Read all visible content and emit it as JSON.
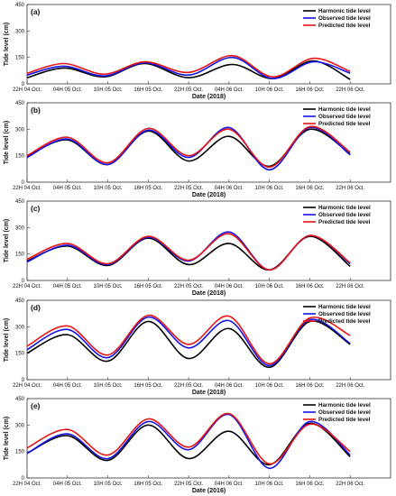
{
  "colors": {
    "harmonic": "#000000",
    "observed": "#1414e6",
    "predicted": "#e61414",
    "frame": "#333333"
  },
  "chart_data": [
    {
      "type": "line",
      "panel_label": "(a)",
      "xlabel": "Date (2018)",
      "ylabel": "Tide level (cm)",
      "ylim": [
        0,
        450
      ],
      "yticks": [
        0,
        150,
        300,
        450
      ],
      "xlim": [
        0,
        54
      ],
      "xticks": [
        0,
        6,
        12,
        18,
        24,
        30,
        36,
        42,
        48
      ],
      "xticklabels": [
        "22H 04 Oct.",
        "04H 05 Oct.",
        "10H 05 Oct.",
        "16H 05 Oct.",
        "22H 05 Oct.",
        "04H 06 Oct.",
        "10H 06 Oct.",
        "16H 06 Oct.",
        "22H 06 Oct."
      ],
      "legend": {
        "position": "top-right"
      },
      "x": [
        0,
        5.5,
        11.5,
        17.5,
        24,
        30.5,
        36.5,
        42.5,
        48
      ],
      "series": [
        {
          "name": "Harmonic tide level",
          "key": "harmonic",
          "values": [
            35,
            90,
            40,
            115,
            35,
            110,
            30,
            130,
            25
          ]
        },
        {
          "name": "Observed tide level",
          "key": "observed",
          "values": [
            50,
            100,
            45,
            120,
            50,
            150,
            30,
            125,
            60
          ]
        },
        {
          "name": "Predicted tide level",
          "key": "predicted",
          "values": [
            60,
            115,
            55,
            125,
            65,
            160,
            40,
            145,
            70
          ]
        }
      ]
    },
    {
      "type": "line",
      "panel_label": "(b)",
      "xlabel": "Date (2018)",
      "ylabel": "Tide level (cm)",
      "ylim": [
        0,
        450
      ],
      "yticks": [
        0,
        150,
        300,
        450
      ],
      "xlim": [
        0,
        54
      ],
      "xticks": [
        0,
        6,
        12,
        18,
        24,
        30,
        36,
        42,
        48
      ],
      "xticklabels": [
        "22H 04 Oct.",
        "04H 05 Oct.",
        "10H 05 Oct.",
        "16H 05 Oct.",
        "22H 05 Oct.",
        "04H 06 Oct.",
        "10H 06 Oct.",
        "16H 06 Oct.",
        "22H 06 Oct."
      ],
      "legend": {
        "position": "top-right"
      },
      "x": [
        0,
        6,
        12,
        18,
        24,
        30,
        36,
        42,
        48
      ],
      "series": [
        {
          "name": "Harmonic tide level",
          "key": "harmonic",
          "values": [
            145,
            240,
            100,
            290,
            120,
            260,
            90,
            300,
            160
          ]
        },
        {
          "name": "Observed tide level",
          "key": "observed",
          "values": [
            140,
            245,
            100,
            295,
            140,
            310,
            70,
            310,
            155
          ]
        },
        {
          "name": "Predicted tide level",
          "key": "predicted",
          "values": [
            150,
            255,
            110,
            305,
            150,
            300,
            85,
            315,
            170
          ]
        }
      ]
    },
    {
      "type": "line",
      "panel_label": "(c)",
      "xlabel": "Date (2018)",
      "ylabel": "Tide level (cm)",
      "ylim": [
        0,
        450
      ],
      "yticks": [
        0,
        150,
        300,
        450
      ],
      "xlim": [
        0,
        54
      ],
      "xticks": [
        0,
        6,
        12,
        18,
        24,
        30,
        36,
        42,
        48
      ],
      "xticklabels": [
        "22H 04 Oct.",
        "04H 05 Oct.",
        "10H 05 Oct.",
        "16H 05 Oct.",
        "22H 05 Oct.",
        "04H 06 Oct.",
        "10H 06 Oct.",
        "16H 06 Oct.",
        "22H 06 Oct."
      ],
      "legend": {
        "position": "top-right"
      },
      "x": [
        0,
        6,
        12,
        18,
        24,
        30,
        36,
        42,
        48
      ],
      "series": [
        {
          "name": "Harmonic tide level",
          "key": "harmonic",
          "values": [
            110,
            195,
            85,
            240,
            90,
            210,
            60,
            250,
            80
          ]
        },
        {
          "name": "Observed tide level",
          "key": "observed",
          "values": [
            105,
            200,
            90,
            245,
            110,
            275,
            60,
            255,
            95
          ]
        },
        {
          "name": "Predicted tide level",
          "key": "predicted",
          "values": [
            120,
            210,
            95,
            250,
            115,
            265,
            60,
            255,
            100
          ]
        }
      ]
    },
    {
      "type": "line",
      "panel_label": "(d)",
      "xlabel": "Date (2018)",
      "ylabel": "Tide level (cm)",
      "ylim": [
        0,
        450
      ],
      "yticks": [
        0,
        150,
        300,
        450
      ],
      "xlim": [
        0,
        54
      ],
      "xticks": [
        0,
        6,
        12,
        18,
        24,
        30,
        36,
        42,
        48
      ],
      "xticklabels": [
        "22H 04 Oct.",
        "04H 05 Oct.",
        "10H 05 Oct.",
        "16H 05 Oct.",
        "22H 05 Oct.",
        "04H 06 Oct.",
        "10H 06 Oct.",
        "16H 06 Oct.",
        "22H 06 Oct."
      ],
      "legend": {
        "position": "top-right"
      },
      "x": [
        0,
        6,
        12,
        18,
        24,
        30,
        36,
        42,
        48
      ],
      "series": [
        {
          "name": "Harmonic tide level",
          "key": "harmonic",
          "values": [
            150,
            255,
            105,
            330,
            120,
            290,
            70,
            330,
            200
          ]
        },
        {
          "name": "Observed tide level",
          "key": "observed",
          "values": [
            170,
            285,
            125,
            355,
            180,
            335,
            80,
            340,
            205
          ]
        },
        {
          "name": "Predicted tide level",
          "key": "predicted",
          "values": [
            190,
            305,
            140,
            365,
            200,
            360,
            90,
            350,
            250
          ]
        }
      ]
    },
    {
      "type": "line",
      "panel_label": "(e)",
      "xlabel": "Date (2016)",
      "ylabel": "Tide level (cm)",
      "ylim": [
        0,
        450
      ],
      "yticks": [
        0,
        150,
        300,
        450
      ],
      "xlim": [
        0,
        54
      ],
      "xticks": [
        0,
        6,
        12,
        18,
        24,
        30,
        36,
        42,
        48
      ],
      "xticklabels": [
        "22H 04 Oct.",
        "04H 05 Oct.",
        "10H 05 Oct.",
        "16H 05 Oct.",
        "22H 05 Oct.",
        "04H 06 Oct.",
        "10H 06 Oct.",
        "16H 06 Oct.",
        "22H 06 Oct."
      ],
      "legend": {
        "position": "top-right"
      },
      "x": [
        0,
        6,
        12,
        18,
        24,
        30,
        36,
        42,
        48
      ],
      "series": [
        {
          "name": "Harmonic tide level",
          "key": "harmonic",
          "values": [
            140,
            240,
            100,
            300,
            110,
            265,
            75,
            310,
            120
          ]
        },
        {
          "name": "Observed tide level",
          "key": "observed",
          "values": [
            140,
            250,
            110,
            320,
            160,
            360,
            55,
            320,
            130
          ]
        },
        {
          "name": "Predicted tide level",
          "key": "predicted",
          "values": [
            170,
            275,
            130,
            335,
            175,
            365,
            80,
            305,
            150
          ]
        }
      ]
    }
  ]
}
